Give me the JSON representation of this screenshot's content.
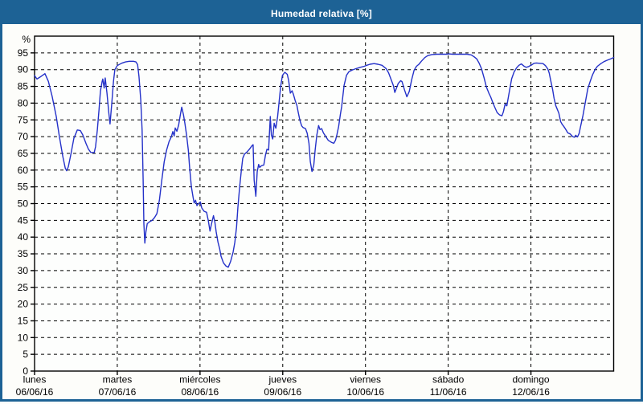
{
  "window": {
    "title": "Humedad relativa [%]"
  },
  "colors": {
    "frame": "#1d6295",
    "title_text": "#ffffff",
    "background": "#fdfdfa",
    "plot_background": "#fdfefd",
    "plot_border": "#000000",
    "grid": "#000000",
    "line": "#2431c9",
    "axis_text": "#000000"
  },
  "chart_data": {
    "type": "line",
    "title": "Humedad relativa [%]",
    "ylabel": "%",
    "ylim": [
      0,
      100
    ],
    "grid": "dashed",
    "legend_position": "none",
    "y_ticks": [
      95,
      90,
      85,
      80,
      75,
      70,
      65,
      60,
      55,
      50,
      45,
      40,
      35,
      30,
      25,
      20,
      15,
      10,
      5,
      0
    ],
    "x_axis": {
      "unit": "days",
      "total_hours": 168,
      "days": [
        {
          "name": "lunes",
          "date": "06/06/16"
        },
        {
          "name": "martes",
          "date": "07/06/16"
        },
        {
          "name": "miércoles",
          "date": "08/06/16"
        },
        {
          "name": "jueves",
          "date": "09/06/16"
        },
        {
          "name": "viernes",
          "date": "10/06/16"
        },
        {
          "name": "sábado",
          "date": "11/06/16"
        },
        {
          "name": "domingo",
          "date": "12/06/16"
        }
      ]
    },
    "series": [
      {
        "name": "Humedad relativa [%]",
        "color": "#2431c9",
        "points_hours_pct": [
          [
            0,
            88.2
          ],
          [
            0.7,
            87.2
          ],
          [
            1.6,
            87.8
          ],
          [
            3,
            88.8
          ],
          [
            4,
            86.5
          ],
          [
            5.1,
            82
          ],
          [
            6.3,
            76
          ],
          [
            7.2,
            70
          ],
          [
            8.2,
            64
          ],
          [
            8.9,
            60.6
          ],
          [
            9.3,
            59.8
          ],
          [
            9.8,
            61
          ],
          [
            10.5,
            64.5
          ],
          [
            11.4,
            69.5
          ],
          [
            12.4,
            72
          ],
          [
            13.3,
            71.8
          ],
          [
            14,
            70.5
          ],
          [
            14.9,
            68
          ],
          [
            15.6,
            66.3
          ],
          [
            16.3,
            65.3
          ],
          [
            17.3,
            65.2
          ],
          [
            17.7,
            67
          ],
          [
            18.2,
            72
          ],
          [
            18.7,
            78
          ],
          [
            19.1,
            83.5
          ],
          [
            19.6,
            86.5
          ],
          [
            19.8,
            87.2
          ],
          [
            20.2,
            84.5
          ],
          [
            20.5,
            87.5
          ],
          [
            21,
            83
          ],
          [
            21.5,
            77.5
          ],
          [
            21.9,
            73.8
          ],
          [
            22.4,
            80
          ],
          [
            22.9,
            86.5
          ],
          [
            23.3,
            90
          ],
          [
            24,
            91.2
          ],
          [
            25.2,
            91.9
          ],
          [
            26.4,
            92.3
          ],
          [
            27.5,
            92.5
          ],
          [
            28.7,
            92.5
          ],
          [
            29.4,
            92.3
          ],
          [
            29.9,
            91.5
          ],
          [
            30.3,
            88
          ],
          [
            30.8,
            81
          ],
          [
            31.2,
            72
          ],
          [
            31.5,
            57
          ],
          [
            31.7,
            44
          ],
          [
            32,
            38.2
          ],
          [
            32.3,
            41.5
          ],
          [
            32.7,
            44
          ],
          [
            33.4,
            44.6
          ],
          [
            34.1,
            45
          ],
          [
            34.8,
            45.8
          ],
          [
            35.5,
            47
          ],
          [
            36.2,
            51
          ],
          [
            36.9,
            57
          ],
          [
            37.6,
            62.5
          ],
          [
            38.3,
            66
          ],
          [
            39,
            68.5
          ],
          [
            39.7,
            70
          ],
          [
            40.1,
            71.5
          ],
          [
            40.5,
            70.2
          ],
          [
            40.8,
            72.6
          ],
          [
            41.3,
            71.6
          ],
          [
            41.8,
            73.5
          ],
          [
            42.2,
            76
          ],
          [
            42.7,
            78.8
          ],
          [
            43.2,
            76.5
          ],
          [
            43.6,
            74
          ],
          [
            44.1,
            70.5
          ],
          [
            44.6,
            66
          ],
          [
            45,
            60.5
          ],
          [
            45.5,
            55
          ],
          [
            46,
            51.8
          ],
          [
            46.3,
            50.2
          ],
          [
            46.7,
            51
          ],
          [
            47.1,
            49.4
          ],
          [
            47.6,
            50
          ],
          [
            48.1,
            50.5
          ],
          [
            48.5,
            48.7
          ],
          [
            49.2,
            47.7
          ],
          [
            49.9,
            47.4
          ],
          [
            50.4,
            45
          ],
          [
            50.9,
            41.8
          ],
          [
            51.3,
            43.8
          ],
          [
            51.9,
            46.4
          ],
          [
            52.3,
            44.5
          ],
          [
            52.7,
            41.5
          ],
          [
            53.2,
            38.5
          ],
          [
            53.7,
            36.5
          ],
          [
            54.1,
            34.3
          ],
          [
            54.8,
            32.3
          ],
          [
            55.5,
            31.4
          ],
          [
            56.2,
            31
          ],
          [
            56.9,
            32.8
          ],
          [
            57.6,
            35.5
          ],
          [
            58.1,
            38.5
          ],
          [
            58.6,
            43
          ],
          [
            59,
            49
          ],
          [
            59.5,
            55
          ],
          [
            60,
            60
          ],
          [
            60.4,
            63.5
          ],
          [
            60.9,
            64.8
          ],
          [
            61.6,
            65.4
          ],
          [
            62.3,
            66.2
          ],
          [
            63,
            67.2
          ],
          [
            63.4,
            67.6
          ],
          [
            63.7,
            57
          ],
          [
            64.2,
            52.2
          ],
          [
            64.6,
            59.5
          ],
          [
            65,
            61.7
          ],
          [
            65.3,
            60.8
          ],
          [
            65.8,
            61.3
          ],
          [
            66.5,
            61.5
          ],
          [
            67,
            64.5
          ],
          [
            67.4,
            66.2
          ],
          [
            67.9,
            66
          ],
          [
            68.4,
            76
          ],
          [
            68.7,
            70.5
          ],
          [
            69.1,
            69.3
          ],
          [
            69.5,
            74
          ],
          [
            70,
            72.5
          ],
          [
            70.5,
            76
          ],
          [
            70.9,
            80
          ],
          [
            71.4,
            85
          ],
          [
            71.9,
            88.3
          ],
          [
            72.6,
            89.2
          ],
          [
            73.3,
            88.6
          ],
          [
            73.7,
            86.8
          ],
          [
            74.2,
            83
          ],
          [
            74.7,
            83.7
          ],
          [
            75.1,
            82.6
          ],
          [
            75.6,
            80.8
          ],
          [
            76.1,
            79.3
          ],
          [
            76.5,
            77.2
          ],
          [
            77,
            74.8
          ],
          [
            77.5,
            73.2
          ],
          [
            77.9,
            72.7
          ],
          [
            78.6,
            72.4
          ],
          [
            79.1,
            71
          ],
          [
            79.6,
            68
          ],
          [
            80,
            62.5
          ],
          [
            80.5,
            59.6
          ],
          [
            81,
            61.5
          ],
          [
            81.4,
            66
          ],
          [
            81.9,
            70.5
          ],
          [
            82.4,
            73.3
          ],
          [
            82.8,
            72.1
          ],
          [
            83.3,
            72.4
          ],
          [
            83.8,
            71.1
          ],
          [
            84.5,
            70
          ],
          [
            85.2,
            68.9
          ],
          [
            86.1,
            68.3
          ],
          [
            86.8,
            68
          ],
          [
            87.3,
            68.9
          ],
          [
            87.7,
            70.5
          ],
          [
            88.2,
            73
          ],
          [
            88.7,
            76.5
          ],
          [
            89.1,
            79
          ],
          [
            89.8,
            85.3
          ],
          [
            90.5,
            88.3
          ],
          [
            91.2,
            89.4
          ],
          [
            92.2,
            89.9
          ],
          [
            93.3,
            90.3
          ],
          [
            94.5,
            90.7
          ],
          [
            95.7,
            91
          ],
          [
            96.1,
            91.2
          ],
          [
            97.3,
            91.6
          ],
          [
            98.5,
            91.8
          ],
          [
            99.6,
            91.6
          ],
          [
            100.8,
            91.3
          ],
          [
            102,
            90.3
          ],
          [
            102.7,
            89.1
          ],
          [
            103.4,
            87.1
          ],
          [
            104.1,
            85.2
          ],
          [
            104.5,
            83.2
          ],
          [
            105,
            84.5
          ],
          [
            105.5,
            85.9
          ],
          [
            106.2,
            86.7
          ],
          [
            106.6,
            86.4
          ],
          [
            107.3,
            84
          ],
          [
            108,
            81.9
          ],
          [
            108.7,
            83.5
          ],
          [
            109.4,
            87
          ],
          [
            110.1,
            89.8
          ],
          [
            110.8,
            91
          ],
          [
            111.5,
            91.6
          ],
          [
            112.2,
            92.5
          ],
          [
            113.2,
            93.6
          ],
          [
            114.1,
            94.2
          ],
          [
            115.3,
            94.5
          ],
          [
            116.7,
            94.6
          ],
          [
            118.1,
            94.6
          ],
          [
            119.5,
            94.6
          ],
          [
            120.2,
            94.7
          ],
          [
            121.3,
            94.6
          ],
          [
            122.7,
            94.6
          ],
          [
            124.1,
            94.6
          ],
          [
            125.5,
            94.6
          ],
          [
            126.7,
            94.4
          ],
          [
            127.6,
            93.8
          ],
          [
            128.3,
            93.2
          ],
          [
            129,
            91.9
          ],
          [
            129.7,
            90.2
          ],
          [
            130.4,
            87.6
          ],
          [
            131.1,
            84.8
          ],
          [
            131.8,
            83
          ],
          [
            132.3,
            81.9
          ],
          [
            133,
            80
          ],
          [
            133.5,
            78.8
          ],
          [
            134.2,
            77.2
          ],
          [
            134.9,
            76.5
          ],
          [
            135.6,
            76.2
          ],
          [
            136,
            77.4
          ],
          [
            136.5,
            79.7
          ],
          [
            137,
            79.2
          ],
          [
            137.7,
            83.3
          ],
          [
            138.4,
            87.3
          ],
          [
            139.1,
            89.3
          ],
          [
            139.8,
            90.5
          ],
          [
            140.5,
            91.3
          ],
          [
            141.2,
            91.7
          ],
          [
            141.9,
            91.1
          ],
          [
            142.6,
            90.7
          ],
          [
            143.3,
            90.9
          ],
          [
            144.2,
            91.4
          ],
          [
            144.9,
            91.9
          ],
          [
            145.6,
            92
          ],
          [
            146.5,
            91.9
          ],
          [
            147.5,
            91.8
          ],
          [
            148.2,
            91.2
          ],
          [
            148.9,
            90.2
          ],
          [
            149.3,
            89
          ],
          [
            149.8,
            86.5
          ],
          [
            150.3,
            84
          ],
          [
            150.7,
            81.5
          ],
          [
            151.2,
            79.3
          ],
          [
            151.7,
            78
          ],
          [
            152.1,
            77
          ],
          [
            152.6,
            74.5
          ],
          [
            153.1,
            73.6
          ],
          [
            153.5,
            73.1
          ],
          [
            154,
            72.3
          ],
          [
            154.7,
            71.1
          ],
          [
            155.4,
            70.8
          ],
          [
            156.1,
            70
          ],
          [
            156.6,
            69.8
          ],
          [
            157,
            70.4
          ],
          [
            157.5,
            69.9
          ],
          [
            158,
            71
          ],
          [
            158.4,
            73
          ],
          [
            159.1,
            76.3
          ],
          [
            159.8,
            80.3
          ],
          [
            160.5,
            84.3
          ],
          [
            161.2,
            86.5
          ],
          [
            161.9,
            88.5
          ],
          [
            162.6,
            90
          ],
          [
            163.3,
            91
          ],
          [
            164.3,
            91.8
          ],
          [
            165.2,
            92.4
          ],
          [
            166.1,
            92.8
          ],
          [
            167.1,
            93.2
          ],
          [
            168,
            93.6
          ]
        ]
      }
    ]
  }
}
